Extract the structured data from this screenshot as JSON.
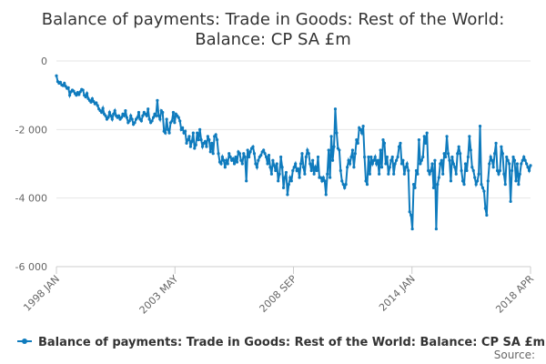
{
  "chart_data": {
    "type": "line",
    "title_lines": [
      "Balance of payments: Trade in Goods: Rest of the World:",
      "Balance: CP SA £m"
    ],
    "xlabel": "",
    "ylabel": "",
    "x_start": "1998-01",
    "x_end": "2018-04",
    "x_ticks": [
      "1998 JAN",
      "2003 MAY",
      "2008 SEP",
      "2014 JAN",
      "2018 APR"
    ],
    "y_ticks": [
      "0",
      "-2 000",
      "-4 000",
      "-6 000"
    ],
    "ylim": [
      -6000,
      0
    ],
    "grid": true,
    "legend_position": "bottom",
    "color": "#0f7bbd",
    "series": [
      {
        "name": "Balance of payments: Trade in Goods: Rest of the World: Balance: CP SA £m",
        "values": [
          -430,
          -600,
          -650,
          -620,
          -700,
          -720,
          -650,
          -740,
          -800,
          -780,
          -1000,
          -900,
          -850,
          -880,
          -950,
          -1000,
          -920,
          -980,
          -900,
          -830,
          -850,
          -1000,
          -1050,
          -950,
          -1100,
          -1150,
          -1200,
          -1100,
          -1180,
          -1250,
          -1220,
          -1300,
          -1400,
          -1450,
          -1500,
          -1380,
          -1550,
          -1600,
          -1700,
          -1650,
          -1500,
          -1600,
          -1700,
          -1550,
          -1450,
          -1600,
          -1650,
          -1600,
          -1700,
          -1650,
          -1550,
          -1600,
          -1450,
          -1650,
          -1800,
          -1750,
          -1600,
          -1700,
          -1850,
          -1800,
          -1700,
          -1650,
          -1500,
          -1700,
          -1750,
          -1600,
          -1500,
          -1550,
          -1600,
          -1400,
          -1700,
          -1800,
          -1750,
          -1650,
          -1550,
          -1600,
          -1150,
          -1600,
          -1700,
          -1450,
          -1500,
          -2050,
          -2100,
          -1700,
          -2000,
          -2100,
          -1800,
          -1750,
          -1500,
          -1800,
          -1550,
          -1600,
          -1650,
          -1750,
          -2000,
          -1950,
          -2100,
          -2050,
          -2400,
          -2300,
          -2200,
          -2500,
          -2350,
          -2100,
          -2550,
          -2450,
          -2100,
          -2300,
          -2000,
          -2300,
          -2500,
          -2400,
          -2350,
          -2500,
          -2200,
          -2300,
          -2650,
          -2400,
          -2700,
          -2200,
          -2150,
          -2300,
          -2700,
          -2950,
          -3000,
          -2800,
          -2900,
          -3100,
          -2900,
          -3000,
          -2700,
          -2800,
          -2900,
          -2850,
          -3000,
          -2800,
          -2950,
          -2650,
          -2700,
          -2900,
          -3000,
          -2700,
          -2800,
          -3500,
          -2600,
          -2800,
          -2650,
          -2550,
          -2500,
          -2700,
          -3000,
          -3100,
          -2900,
          -2800,
          -2750,
          -2650,
          -2600,
          -2700,
          -2800,
          -3000,
          -2750,
          -3100,
          -3300,
          -2900,
          -3050,
          -3200,
          -3000,
          -3500,
          -3300,
          -2800,
          -3100,
          -3700,
          -3400,
          -3250,
          -3900,
          -3600,
          -3400,
          -3500,
          -3200,
          -3100,
          -3000,
          -3200,
          -3150,
          -3400,
          -3000,
          -2700,
          -3100,
          -3300,
          -2800,
          -2600,
          -2700,
          -3000,
          -3200,
          -2900,
          -3300,
          -3100,
          -3200,
          -2800,
          -3400,
          -3400,
          -3500,
          -3400,
          -3500,
          -3900,
          -3300,
          -2600,
          -3400,
          -2200,
          -2900,
          -2500,
          -1400,
          -2100,
          -2550,
          -2600,
          -3200,
          -3500,
          -3600,
          -3700,
          -3600,
          -3100,
          -2900,
          -3000,
          -2800,
          -2600,
          -3100,
          -2700,
          -2300,
          -2400,
          -1950,
          -2000,
          -2100,
          -1900,
          -2800,
          -3500,
          -3600,
          -2800,
          -3300,
          -2800,
          -3000,
          -2900,
          -2800,
          -3000,
          -2900,
          -3300,
          -2600,
          -3100,
          -2300,
          -2400,
          -3000,
          -2800,
          -3300,
          -3100,
          -2900,
          -2800,
          -3300,
          -3000,
          -2900,
          -2800,
          -2500,
          -2400,
          -3000,
          -2900,
          -3300,
          -3100,
          -3000,
          -3200,
          -4400,
          -4500,
          -4900,
          -3600,
          -3700,
          -3200,
          -3300,
          -2300,
          -3000,
          -2900,
          -2800,
          -2200,
          -2400,
          -2100,
          -3200,
          -3300,
          -3200,
          -3000,
          -3700,
          -2900,
          -4900,
          -3600,
          -3400,
          -3000,
          -2900,
          -3300,
          -2700,
          -2800,
          -2200,
          -2700,
          -2900,
          -3500,
          -2800,
          -3000,
          -3100,
          -3300,
          -2700,
          -2500,
          -2700,
          -3200,
          -3500,
          -3600,
          -3000,
          -3200,
          -2800,
          -2200,
          -2600,
          -3100,
          -3200,
          -3400,
          -3600,
          -3500,
          -3300,
          -1900,
          -3600,
          -3700,
          -3800,
          -4300,
          -4500,
          -3500,
          -3000,
          -2800,
          -2900,
          -3100,
          -2700,
          -2400,
          -3200,
          -3300,
          -3200,
          -2500,
          -2700,
          -3300,
          -3600,
          -2800,
          -2900,
          -3000,
          -4100,
          -3200,
          -2800,
          -2900,
          -3500,
          -3000,
          -3600,
          -3300,
          -3000,
          -2900,
          -2800,
          -2900,
          -3000,
          -3100,
          -3200,
          -3050
        ]
      }
    ],
    "credit": "Source:"
  }
}
